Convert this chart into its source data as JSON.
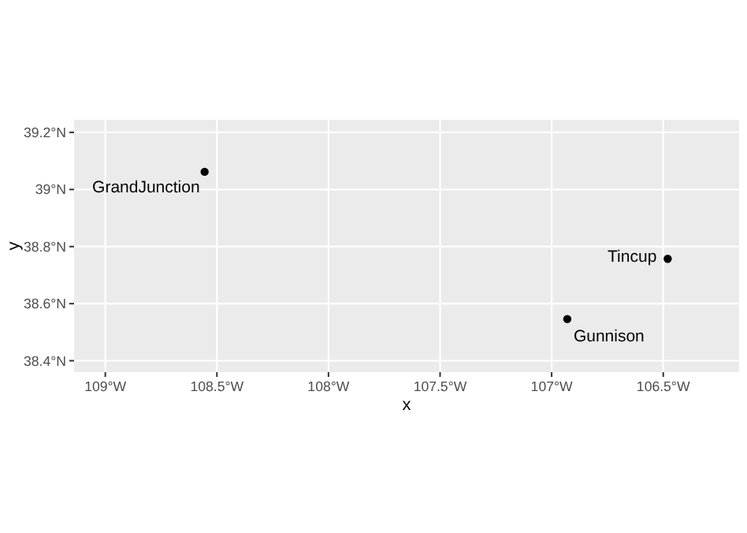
{
  "chart_data": {
    "type": "scatter",
    "xlabel": "x",
    "ylabel": "y",
    "x": [
      -108.555,
      -106.48,
      -106.93
    ],
    "series": [
      {
        "color": "#000000",
        "values": [
          39.062,
          38.757,
          38.546
        ]
      }
    ],
    "marker": "circle",
    "grid": true,
    "xlim": [
      -109.14,
      -106.16
    ],
    "ylim": [
      38.36,
      39.244
    ],
    "xticks": [
      {
        "value": -109,
        "label": "109°W"
      },
      {
        "value": -108.5,
        "label": "108.5°W"
      },
      {
        "value": -108,
        "label": "108°W"
      },
      {
        "value": -107.5,
        "label": "107.5°W"
      },
      {
        "value": -107,
        "label": "107°W"
      },
      {
        "value": -106.5,
        "label": "106.5°W"
      }
    ],
    "yticks": [
      {
        "value": 38.4,
        "label": "38.4°N"
      },
      {
        "value": 38.6,
        "label": "38.6°N"
      },
      {
        "value": 38.8,
        "label": "38.8°N"
      },
      {
        "value": 39,
        "label": "39°N"
      },
      {
        "value": 39.2,
        "label": "39.2°N"
      }
    ],
    "annotations": [
      {
        "text": "GrandJunction",
        "x": -108.555,
        "y": 39.062
      },
      {
        "text": "Tincup",
        "x": -106.48,
        "y": 38.757
      },
      {
        "text": "Gunnison",
        "x": -106.93,
        "y": 38.546
      }
    ]
  }
}
